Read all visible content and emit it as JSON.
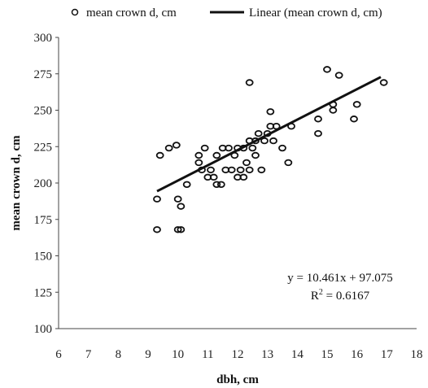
{
  "chart_data": {
    "type": "scatter",
    "legend": {
      "position": "top",
      "markers_label": "mean crown d, cm",
      "trendline_label": "Linear (mean crown d, cm)"
    },
    "xlabel": "dbh, cm",
    "ylabel": "mean crown d, cm",
    "xlim": [
      6,
      18
    ],
    "ylim": [
      100,
      300
    ],
    "xticks": [
      "6",
      "7",
      "8",
      "9",
      "10",
      "11",
      "12",
      "13",
      "14",
      "15",
      "16",
      "17",
      "18"
    ],
    "yticks": [
      "100",
      "125",
      "150",
      "175",
      "200",
      "225",
      "250",
      "275",
      "300"
    ],
    "grid": false,
    "series": [
      {
        "name": "mean crown d, cm",
        "points": [
          [
            9.3,
            168
          ],
          [
            10.0,
            168
          ],
          [
            10.1,
            168
          ],
          [
            9.3,
            189
          ],
          [
            9.4,
            219
          ],
          [
            9.7,
            224
          ],
          [
            9.95,
            226
          ],
          [
            10.0,
            189
          ],
          [
            10.1,
            184
          ],
          [
            10.3,
            199
          ],
          [
            10.7,
            219
          ],
          [
            10.7,
            214
          ],
          [
            10.8,
            209
          ],
          [
            10.9,
            224
          ],
          [
            11.0,
            204
          ],
          [
            11.1,
            209
          ],
          [
            11.2,
            204
          ],
          [
            11.3,
            219
          ],
          [
            11.3,
            199
          ],
          [
            11.45,
            199
          ],
          [
            11.5,
            224
          ],
          [
            11.6,
            209
          ],
          [
            11.7,
            224
          ],
          [
            11.8,
            209
          ],
          [
            11.9,
            219
          ],
          [
            12.0,
            224
          ],
          [
            12.0,
            204
          ],
          [
            12.1,
            209
          ],
          [
            12.2,
            224
          ],
          [
            12.2,
            204
          ],
          [
            12.3,
            214
          ],
          [
            12.4,
            229
          ],
          [
            12.4,
            209
          ],
          [
            12.4,
            269
          ],
          [
            12.5,
            224
          ],
          [
            12.6,
            229
          ],
          [
            12.6,
            219
          ],
          [
            12.7,
            234
          ],
          [
            12.8,
            209
          ],
          [
            12.9,
            229
          ],
          [
            13.0,
            234
          ],
          [
            13.1,
            249
          ],
          [
            13.1,
            239
          ],
          [
            13.2,
            229
          ],
          [
            13.3,
            239
          ],
          [
            13.5,
            224
          ],
          [
            13.7,
            214
          ],
          [
            13.8,
            239
          ],
          [
            14.7,
            244
          ],
          [
            14.7,
            234
          ],
          [
            15.0,
            278
          ],
          [
            15.2,
            254
          ],
          [
            15.2,
            250
          ],
          [
            15.4,
            274
          ],
          [
            15.9,
            244
          ],
          [
            16.0,
            254
          ],
          [
            16.9,
            269
          ]
        ]
      }
    ],
    "trendline": {
      "type": "linear",
      "slope": 10.461,
      "intercept": 97.075,
      "x_range": [
        9.3,
        16.8
      ],
      "equation": "y = 10.461x + 97.075",
      "r2_prefix": "R",
      "r2_sup": "2",
      "r2_value": " = 0.6167"
    }
  }
}
